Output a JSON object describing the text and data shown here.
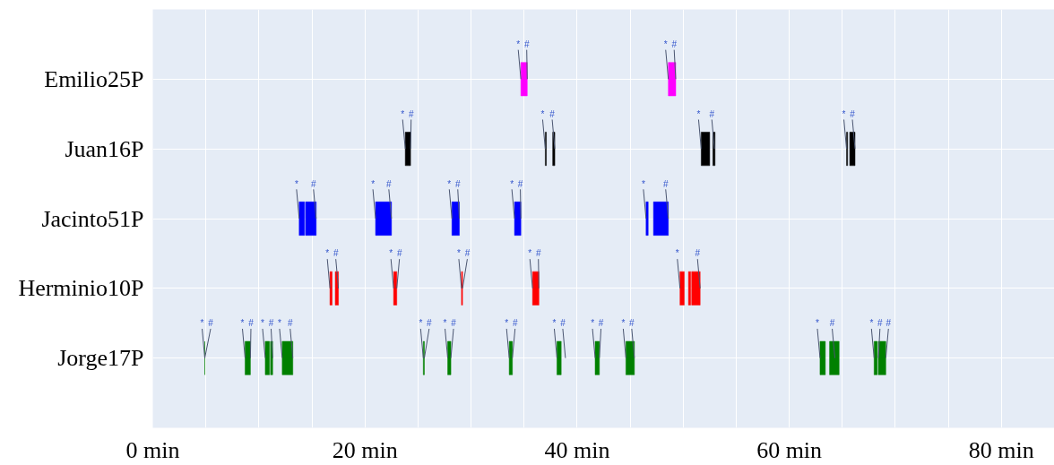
{
  "chart_data": {
    "type": "bar",
    "orientation": "horizontal",
    "categories": [
      "Emilio25P",
      "Juan16P",
      "Jacinto51P",
      "Herminio10P",
      "Jorge17P"
    ],
    "series": [
      {
        "base": [
          34.7,
          23.8,
          13.8,
          16.7,
          8.7
        ],
        "values": [
          0.6,
          0.5,
          0.5,
          0.2,
          0.5
        ],
        "colors": [
          "#ff00ff",
          "#000000",
          "#0000ff",
          "#ff0000",
          "#008000"
        ]
      },
      {
        "base": [
          48.6,
          37.0,
          14.4,
          17.2,
          10.6
        ],
        "values": [
          0.7,
          0.1,
          1.0,
          0.3,
          0.4
        ],
        "colors": [
          "#ff00ff",
          "#000000",
          "#0000ff",
          "#ff0000",
          "#008000"
        ]
      },
      {
        "base": [
          null,
          37.7,
          21.0,
          22.7,
          11.1
        ],
        "values": [
          null,
          0.2,
          1.5,
          0.3,
          0.2
        ],
        "colors": [
          null,
          "#000000",
          "#0000ff",
          "#ff0000",
          "#008000"
        ]
      },
      {
        "base": [
          null,
          51.7,
          28.2,
          29.1,
          12.2
        ],
        "values": [
          null,
          0.8,
          0.7,
          0.1,
          1.0
        ],
        "colors": [
          null,
          "#000000",
          "#0000ff",
          "#ff0000",
          "#008000"
        ]
      },
      {
        "base": [
          null,
          52.8,
          34.1,
          35.8,
          25.5
        ],
        "values": [
          null,
          0.2,
          0.6,
          0.6,
          0.1
        ],
        "colors": [
          null,
          "#000000",
          "#0000ff",
          "#ff0000",
          "#008000"
        ]
      },
      {
        "base": [
          null,
          65.4,
          46.5,
          49.7,
          27.8
        ],
        "values": [
          null,
          0.1,
          0.2,
          0.4,
          0.3
        ],
        "colors": [
          null,
          "#000000",
          "#0000ff",
          "#ff0000",
          "#008000"
        ]
      },
      {
        "base": [
          null,
          65.7,
          47.2,
          50.5,
          33.6
        ],
        "values": [
          null,
          0.5,
          1.4,
          0.2,
          0.3
        ],
        "colors": [
          null,
          "#000000",
          "#0000ff",
          "#ff0000",
          "#008000"
        ]
      },
      {
        "base": [
          null,
          null,
          null,
          50.8,
          38.1
        ],
        "values": [
          null,
          null,
          null,
          0.8,
          0.4
        ],
        "colors": [
          null,
          null,
          null,
          "#ff0000",
          "#008000"
        ]
      },
      {
        "base": [
          null,
          null,
          null,
          null,
          41.7
        ],
        "values": [
          null,
          null,
          null,
          null,
          0.4
        ],
        "color": "#008000"
      },
      {
        "base": [
          null,
          null,
          null,
          null,
          44.6
        ],
        "values": [
          null,
          null,
          null,
          null,
          0.8
        ],
        "color": "#008000"
      },
      {
        "base": [
          null,
          null,
          null,
          null,
          62.9
        ],
        "values": [
          null,
          null,
          null,
          null,
          0.5
        ],
        "color": "#008000"
      },
      {
        "base": [
          null,
          null,
          null,
          null,
          63.8
        ],
        "values": [
          null,
          null,
          null,
          null,
          0.9
        ],
        "color": "#008000"
      },
      {
        "base": [
          null,
          null,
          null,
          null,
          68.0
        ],
        "values": [
          null,
          null,
          null,
          null,
          0.3
        ],
        "color": "#008000"
      },
      {
        "base": [
          null,
          null,
          null,
          null,
          68.4
        ],
        "values": [
          null,
          null,
          null,
          null,
          0.7
        ],
        "color": "#008000"
      },
      {
        "base": [
          null,
          null,
          null,
          null,
          4.9
        ],
        "values": [
          null,
          null,
          null,
          null,
          0
        ],
        "color": "#008000"
      }
    ],
    "xlim": [
      0,
      85
    ],
    "xticks": [
      {
        "value": 0,
        "label": "0 min"
      },
      {
        "value": 5,
        "label": null
      },
      {
        "value": 10,
        "label": null
      },
      {
        "value": 15,
        "label": null
      },
      {
        "value": 20,
        "label": "20 min"
      },
      {
        "value": 25,
        "label": null
      },
      {
        "value": 30,
        "label": null
      },
      {
        "value": 35,
        "label": null
      },
      {
        "value": 40,
        "label": "40 min"
      },
      {
        "value": 45,
        "label": null
      },
      {
        "value": 50,
        "label": null
      },
      {
        "value": 55,
        "label": null
      },
      {
        "value": 60,
        "label": "60 min"
      },
      {
        "value": 65,
        "label": null
      },
      {
        "value": 70,
        "label": null
      },
      {
        "value": 75,
        "label": null
      },
      {
        "value": 80,
        "label": "80 min"
      }
    ],
    "grid": true,
    "annotations": [
      {
        "text": "*",
        "x": 34.7,
        "y": "Emilio25P"
      },
      {
        "text": "#",
        "x": 35.3,
        "y": "Emilio25P"
      },
      {
        "text": "*",
        "x": 48.6,
        "y": "Emilio25P"
      },
      {
        "text": "#",
        "x": 49.3,
        "y": "Emilio25P"
      },
      {
        "text": "*",
        "x": 23.8,
        "y": "Juan16P"
      },
      {
        "text": "#",
        "x": 24.3,
        "y": "Juan16P"
      },
      {
        "text": "*",
        "x": 37.0,
        "y": "Juan16P"
      },
      {
        "text": "#",
        "x": 37.9,
        "y": "Juan16P"
      },
      {
        "text": "*",
        "x": 51.7,
        "y": "Juan16P"
      },
      {
        "text": "#",
        "x": 52.95,
        "y": "Juan16P"
      },
      {
        "text": "*",
        "x": 65.4,
        "y": "Juan16P"
      },
      {
        "text": "#",
        "x": 66.2,
        "y": "Juan16P"
      },
      {
        "text": "*",
        "x": 13.8,
        "y": "Jacinto51P"
      },
      {
        "text": "#",
        "x": 15.4,
        "y": "Jacinto51P"
      },
      {
        "text": "*",
        "x": 21.0,
        "y": "Jacinto51P"
      },
      {
        "text": "#",
        "x": 22.5,
        "y": "Jacinto51P"
      },
      {
        "text": "*",
        "x": 28.2,
        "y": "Jacinto51P"
      },
      {
        "text": "#",
        "x": 28.9,
        "y": "Jacinto51P"
      },
      {
        "text": "*",
        "x": 34.1,
        "y": "Jacinto51P"
      },
      {
        "text": "#",
        "x": 34.7,
        "y": "Jacinto51P"
      },
      {
        "text": "*",
        "x": 46.5,
        "y": "Jacinto51P"
      },
      {
        "text": "#",
        "x": 48.6,
        "y": "Jacinto51P"
      },
      {
        "text": "*",
        "x": 16.7,
        "y": "Herminio10P"
      },
      {
        "text": "#",
        "x": 17.5,
        "y": "Herminio10P"
      },
      {
        "text": "*",
        "x": 22.7,
        "y": "Herminio10P"
      },
      {
        "text": "#",
        "x": 23.0,
        "y": "Herminio10P"
      },
      {
        "text": "*",
        "x": 29.1,
        "y": "Herminio10P"
      },
      {
        "text": "#",
        "x": 29.2,
        "y": "Herminio10P"
      },
      {
        "text": "*",
        "x": 35.8,
        "y": "Herminio10P"
      },
      {
        "text": "#",
        "x": 36.4,
        "y": "Herminio10P"
      },
      {
        "text": "*",
        "x": 49.7,
        "y": "Herminio10P"
      },
      {
        "text": "#",
        "x": 51.6,
        "y": "Herminio10P"
      },
      {
        "text": "*",
        "x": 4.9,
        "y": "Jorge17P"
      },
      {
        "text": "#",
        "x": 4.9,
        "y": "Jorge17P"
      },
      {
        "text": "*",
        "x": 8.7,
        "y": "Jorge17P"
      },
      {
        "text": "#",
        "x": 9.2,
        "y": "Jorge17P"
      },
      {
        "text": "*",
        "x": 10.6,
        "y": "Jorge17P"
      },
      {
        "text": "#",
        "x": 11.3,
        "y": "Jorge17P"
      },
      {
        "text": "*",
        "x": 12.2,
        "y": "Jorge17P"
      },
      {
        "text": "#",
        "x": 13.2,
        "y": "Jorge17P"
      },
      {
        "text": "*",
        "x": 25.5,
        "y": "Jorge17P"
      },
      {
        "text": "#",
        "x": 25.6,
        "y": "Jorge17P"
      },
      {
        "text": "*",
        "x": 27.8,
        "y": "Jorge17P"
      },
      {
        "text": "#",
        "x": 28.1,
        "y": "Jorge17P"
      },
      {
        "text": "*",
        "x": 33.6,
        "y": "Jorge17P"
      },
      {
        "text": "#",
        "x": 33.9,
        "y": "Jorge17P"
      },
      {
        "text": "*",
        "x": 38.1,
        "y": "Jorge17P"
      },
      {
        "text": "#",
        "x": 38.9,
        "y": "Jorge17P"
      },
      {
        "text": "*",
        "x": 41.7,
        "y": "Jorge17P"
      },
      {
        "text": "#",
        "x": 42.1,
        "y": "Jorge17P"
      },
      {
        "text": "*",
        "x": 44.6,
        "y": "Jorge17P"
      },
      {
        "text": "#",
        "x": 45.4,
        "y": "Jorge17P"
      },
      {
        "text": "*",
        "x": 62.9,
        "y": "Jorge17P"
      },
      {
        "text": "#",
        "x": 64.3,
        "y": "Jorge17P"
      },
      {
        "text": "*",
        "x": 68.0,
        "y": "Jorge17P"
      },
      {
        "text": "#",
        "x": 68.4,
        "y": "Jorge17P"
      },
      {
        "text": "#",
        "x": 69.1,
        "y": "Jorge17P"
      }
    ]
  }
}
